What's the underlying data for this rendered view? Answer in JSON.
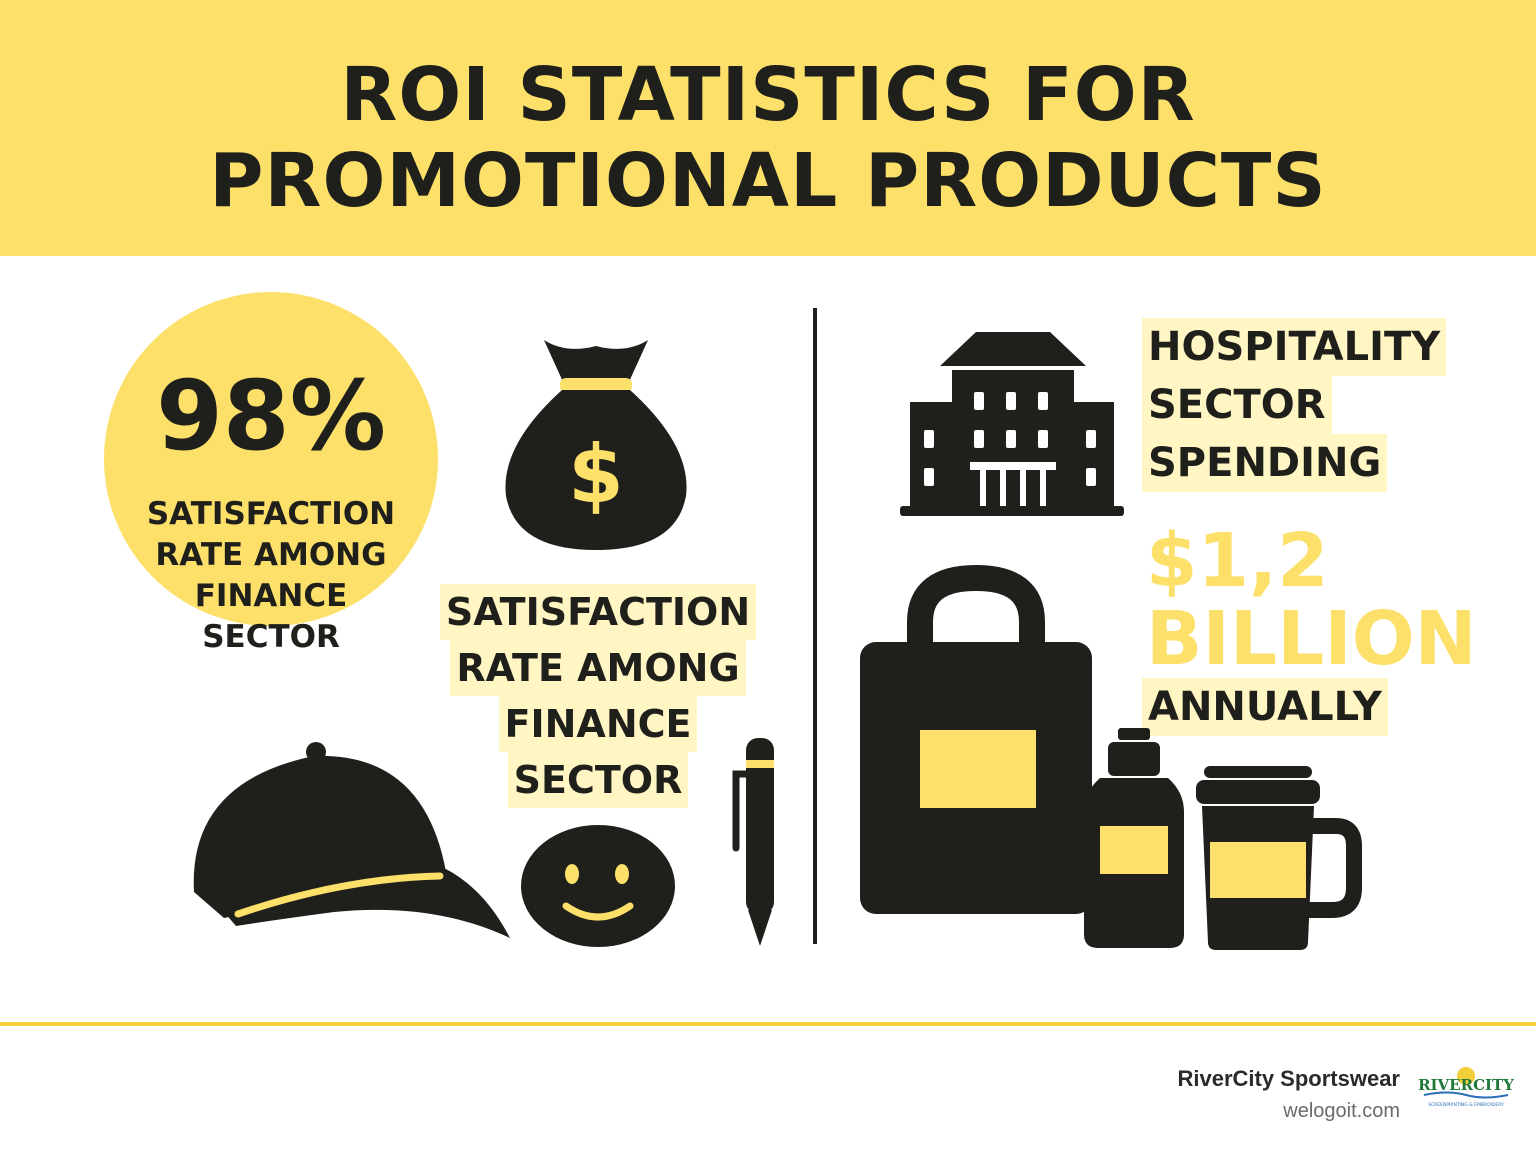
{
  "header": {
    "title_line1": "ROI STATISTICS FOR",
    "title_line2": "PROMOTIONAL PRODUCTS"
  },
  "finance_stat": {
    "value": "98%",
    "caption_lines": [
      "SATISFACTION",
      "RATE AMONG",
      "FINANCE",
      "SECTOR"
    ]
  },
  "finance_caption_repeat": {
    "lines": [
      "SATISFACTION",
      "RATE AMONG",
      "FINANCE",
      "SECTOR"
    ]
  },
  "hospitality_stat": {
    "label_lines": [
      "HOSPITALITY",
      "SECTOR",
      "SPENDING"
    ],
    "amount_lines": [
      "$1,2",
      "BILLION"
    ],
    "period": "ANNUALLY"
  },
  "footer": {
    "brand": "RiverCity Sportswear",
    "website": "welogoit.com",
    "logo_text": "RIVERCITY",
    "logo_subtext": "SCREENPRINTING & EMBROIDERY"
  },
  "colors": {
    "accent_yellow": "#fce06a",
    "ink": "#1f1f1b",
    "highlight": "#fff6c4"
  },
  "icons": [
    "money-bag-icon",
    "baseball-cap-icon",
    "smiley-face-icon",
    "pen-icon",
    "hotel-building-icon",
    "tote-bag-icon",
    "water-bottle-icon",
    "travel-mug-icon"
  ]
}
